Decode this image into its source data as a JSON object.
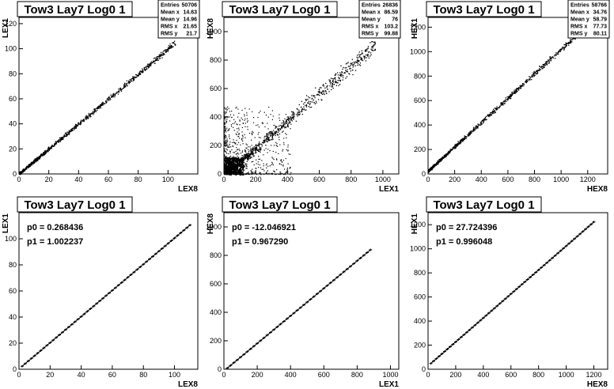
{
  "chart_data": [
    {
      "type": "scatter",
      "title": "Tow3 Lay7 Log0 1",
      "xlabel": "LEX8",
      "ylabel": "LEX1",
      "xlim": [
        0,
        120
      ],
      "ylim": [
        0,
        125
      ],
      "xticks": [
        0,
        20,
        40,
        60,
        80,
        100
      ],
      "yticks": [
        0,
        20,
        40,
        60,
        80,
        100,
        120
      ],
      "stats": [
        [
          "Entries",
          "50706"
        ],
        [
          "Mean x",
          "14.63"
        ],
        [
          "Mean y",
          "14.96"
        ],
        [
          "RMS x",
          "21.65"
        ],
        [
          "RMS y",
          "21.7"
        ]
      ],
      "trend": {
        "x0": 0,
        "x1": 105,
        "slope": 1.0,
        "intercept": 0.3
      },
      "spread": 0.6,
      "outliers": 0
    },
    {
      "type": "scatter",
      "title": "Tow3 Lay7 Log0 1",
      "xlabel": "LEX1",
      "ylabel": "HEX8",
      "xlim": [
        0,
        1100
      ],
      "ylim": [
        0,
        1100
      ],
      "xticks": [
        0,
        200,
        400,
        600,
        800,
        1000
      ],
      "yticks": [
        0,
        200,
        400,
        600,
        800,
        1000
      ],
      "stats": [
        [
          "Entries",
          "26836"
        ],
        [
          "Mean x",
          "86.59"
        ],
        [
          "Mean y",
          "76"
        ],
        [
          "RMS x",
          "103.2"
        ],
        [
          "RMS y",
          "99.88"
        ]
      ],
      "trend": {
        "x0": 0,
        "x1": 950,
        "slope": 0.967,
        "intercept": -12
      },
      "spread": 15,
      "outliers": 1
    },
    {
      "type": "scatter",
      "title": "Tow3 Lay7 Log0 1",
      "xlabel": "HEX8",
      "ylabel": "HEX1",
      "xlim": [
        0,
        1350
      ],
      "ylim": [
        0,
        1280
      ],
      "xticks": [
        0,
        200,
        400,
        600,
        800,
        1000,
        1200
      ],
      "yticks": [
        0,
        200,
        400,
        600,
        800,
        1000,
        1200
      ],
      "stats": [
        [
          "Entries",
          "58766"
        ],
        [
          "Mean x",
          "34.76"
        ],
        [
          "Mean y",
          "58.79"
        ],
        [
          "RMS x",
          "77.73"
        ],
        [
          "RMS y",
          "80.11"
        ]
      ],
      "trend": {
        "x0": 0,
        "x1": 1150,
        "slope": 0.996,
        "intercept": 27.7
      },
      "spread": 6,
      "outliers": 0
    },
    {
      "type": "line",
      "title": "Tow3 Lay7 Log0 1",
      "xlabel": "LEX8",
      "ylabel": "LEX1",
      "xlim": [
        0,
        115
      ],
      "ylim": [
        0,
        120
      ],
      "xticks": [
        0,
        20,
        40,
        60,
        80,
        100
      ],
      "yticks": [
        0,
        20,
        40,
        60,
        80,
        100
      ],
      "fit": {
        "p0": "0.268436",
        "p1": "1.002237",
        "p0_value": 0.268436,
        "p1_value": 1.002237
      },
      "profile": {
        "x0": 2,
        "x1": 110,
        "step": 2
      }
    },
    {
      "type": "line",
      "title": "Tow3 Lay7 Log0 1",
      "xlabel": "LEX1",
      "ylabel": "HEX8",
      "xlim": [
        0,
        1050
      ],
      "ylim": [
        0,
        1100
      ],
      "xticks": [
        0,
        200,
        400,
        600,
        800,
        1000
      ],
      "yticks": [
        0,
        200,
        400,
        600,
        800,
        1000
      ],
      "fit": {
        "p0": "-12.046921",
        "p1": "0.967290",
        "p0_value": -12.046921,
        "p1_value": 0.96729
      },
      "profile": {
        "x0": 20,
        "x1": 880,
        "step": 20
      }
    },
    {
      "type": "line",
      "title": "Tow3 Lay7 Log0 1",
      "xlabel": "HEX8",
      "ylabel": "HEX1",
      "xlim": [
        0,
        1300
      ],
      "ylim": [
        0,
        1300
      ],
      "xticks": [
        0,
        200,
        400,
        600,
        800,
        1000,
        1200
      ],
      "yticks": [
        0,
        200,
        400,
        600,
        800,
        1000,
        1200
      ],
      "fit": {
        "p0": "27.724396",
        "p1": "0.996048",
        "p0_value": 27.724396,
        "p1_value": 0.996048
      },
      "profile": {
        "x0": 20,
        "x1": 1200,
        "step": 20
      }
    }
  ]
}
